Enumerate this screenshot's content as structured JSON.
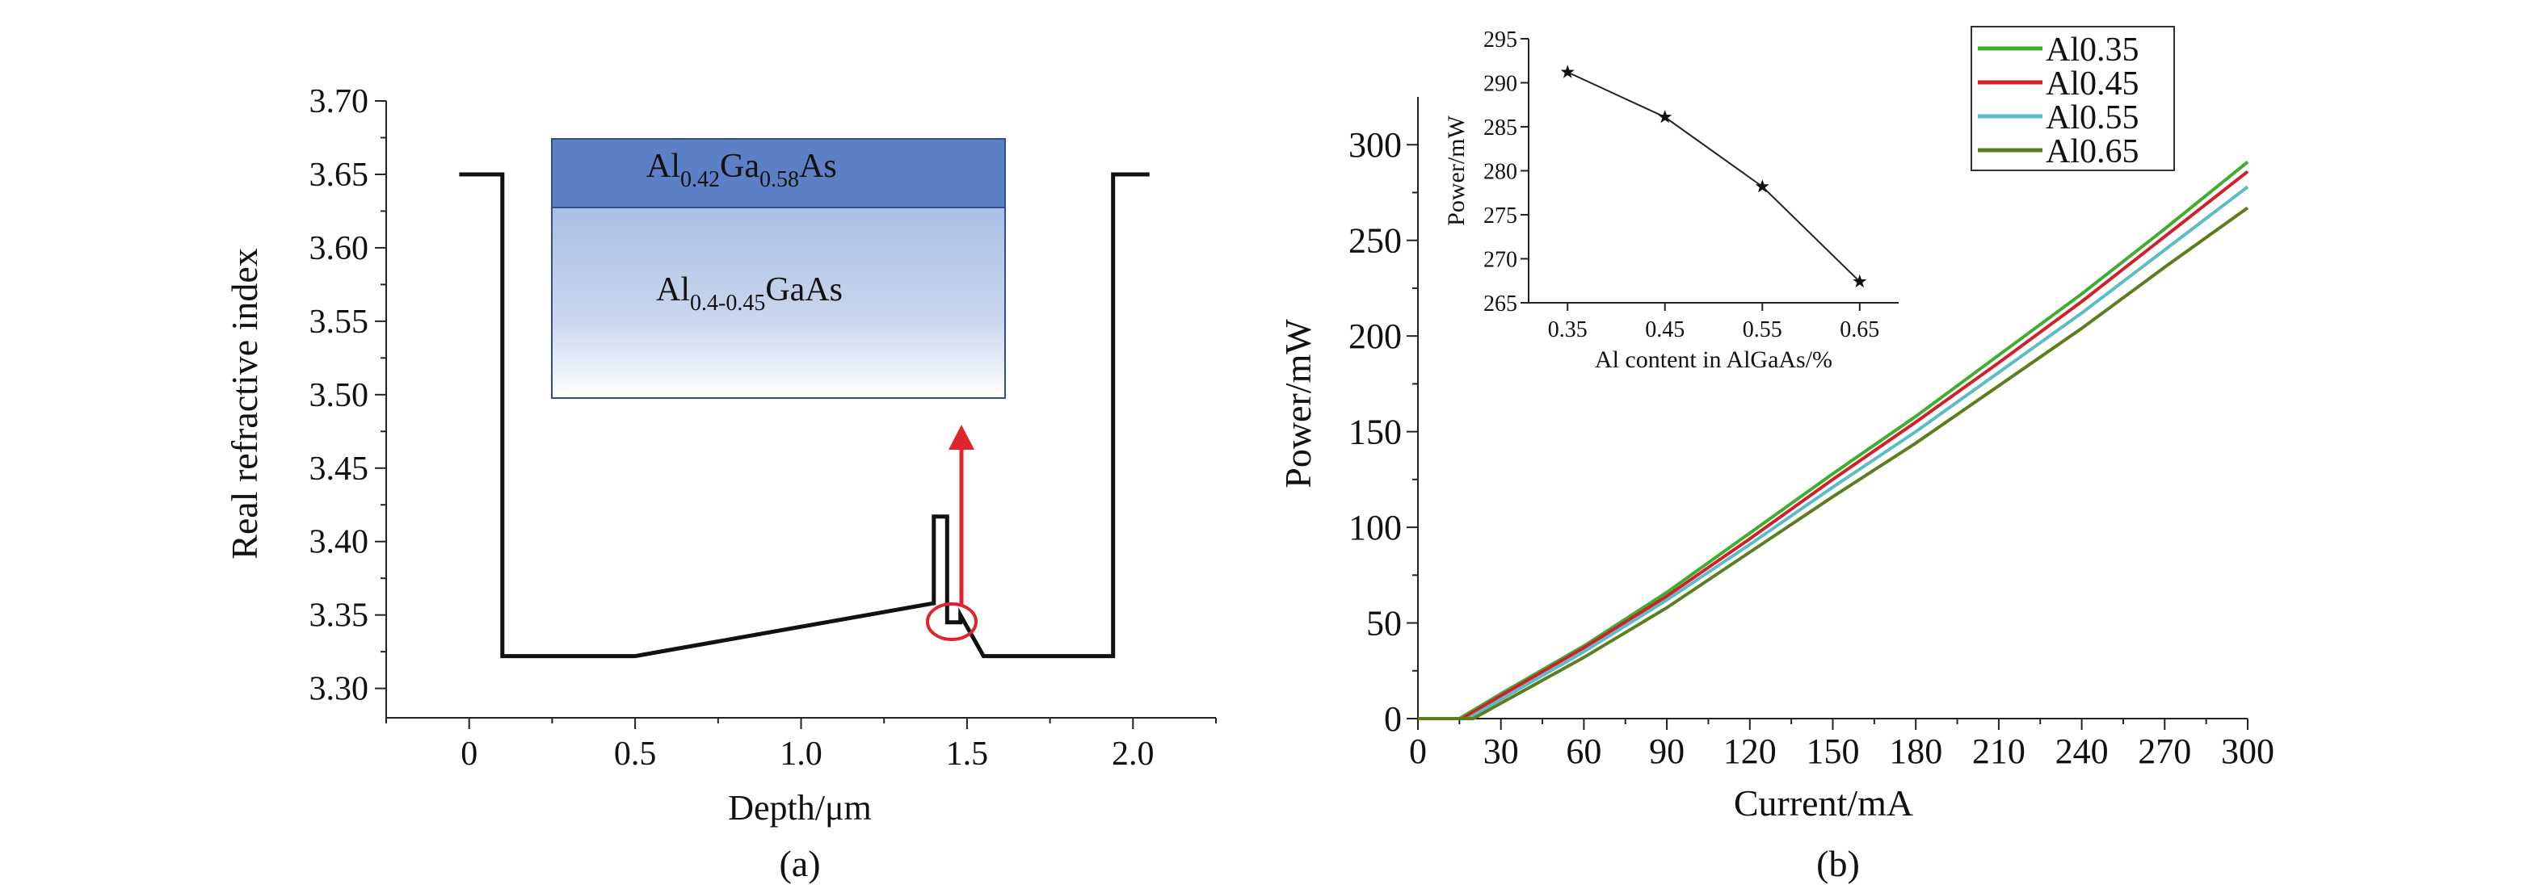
{
  "chart_data": [
    {
      "type": "line",
      "panel_label": "(a)",
      "xlabel": "Depth/μm",
      "ylabel": "Real refractive index",
      "xlim": [
        -0.25,
        2.25
      ],
      "ylim": [
        3.28,
        3.7
      ],
      "xticks": [
        0,
        0.5,
        1.0,
        1.5,
        2.0
      ],
      "xtick_labels": [
        "0",
        "0.5",
        "1.0",
        "1.5",
        "2.0"
      ],
      "yticks": [
        3.3,
        3.35,
        3.4,
        3.45,
        3.5,
        3.55,
        3.6,
        3.65,
        3.7
      ],
      "ytick_labels": [
        "3.30",
        "3.35",
        "3.40",
        "3.45",
        "3.50",
        "3.55",
        "3.60",
        "3.65",
        "3.70"
      ],
      "series": [
        {
          "x": [
            -0.03,
            0.1,
            0.1,
            0.5,
            1.4,
            1.4,
            1.44,
            1.44,
            1.48,
            1.48,
            1.55,
            1.94,
            1.94,
            2.05
          ],
          "y": [
            3.65,
            3.65,
            3.322,
            3.322,
            3.358,
            3.417,
            3.417,
            3.345,
            3.345,
            3.35,
            3.322,
            3.322,
            3.65,
            3.65
          ]
        }
      ],
      "inset_layers": [
        {
          "base": "Al",
          "sub1": "0.42",
          "mid": "Ga",
          "sub2": "0.58",
          "tail": "As"
        },
        {
          "base": "Al",
          "sub1": "0.4-0.45",
          "mid": "GaAs",
          "sub2": "",
          "tail": ""
        }
      ],
      "highlight_color": "#e0242b",
      "layer_top_color": "#5b80c6",
      "layer_gradient_color": "#a9c0e4"
    },
    {
      "type": "line",
      "panel_label": "(b)",
      "xlabel": "Current/mA",
      "ylabel": "Power/mW",
      "xlim": [
        0,
        300
      ],
      "ylim": [
        0,
        325
      ],
      "xticks": [
        0,
        30,
        60,
        90,
        120,
        150,
        180,
        210,
        240,
        270,
        300
      ],
      "xtick_labels": [
        "0",
        "30",
        "60",
        "90",
        "120",
        "150",
        "180",
        "210",
        "240",
        "270",
        "300"
      ],
      "yticks": [
        0,
        50,
        100,
        150,
        200,
        250,
        300
      ],
      "ytick_labels": [
        "0",
        "50",
        "100",
        "150",
        "200",
        "250",
        "300"
      ],
      "legend_position": "top-right",
      "series": [
        {
          "name": "Al0.35",
          "color": "#3fae2e",
          "threshold": 15,
          "x": [
            0,
            15,
            30,
            60,
            90,
            120,
            150,
            180,
            210,
            240,
            270,
            300
          ],
          "y": [
            0,
            0,
            13,
            38,
            66,
            97,
            128,
            158,
            190,
            222,
            256,
            291
          ]
        },
        {
          "name": "Al0.45",
          "color": "#d21f2c",
          "threshold": 16,
          "x": [
            0,
            16,
            30,
            60,
            90,
            120,
            150,
            180,
            210,
            240,
            270,
            300
          ],
          "y": [
            0,
            0,
            12,
            37,
            64,
            94,
            125,
            155,
            186,
            218,
            252,
            286
          ]
        },
        {
          "name": "Al0.55",
          "color": "#5bbcc8",
          "threshold": 18,
          "x": [
            0,
            18,
            30,
            60,
            90,
            120,
            150,
            180,
            210,
            240,
            270,
            300
          ],
          "y": [
            0,
            0,
            10,
            35,
            62,
            91,
            121,
            150,
            181,
            212,
            245,
            278
          ]
        },
        {
          "name": "Al0.65",
          "color": "#5e7d1e",
          "threshold": 20,
          "x": [
            0,
            20,
            30,
            60,
            90,
            120,
            150,
            180,
            210,
            240,
            270,
            300
          ],
          "y": [
            0,
            0,
            8,
            32,
            58,
            87,
            116,
            144,
            174,
            204,
            236,
            267
          ]
        }
      ]
    },
    {
      "type": "line",
      "role": "inset",
      "xlabel": "Al content in AlGaAs/%",
      "ylabel": "Power/mW",
      "xlim": [
        0.31,
        0.69
      ],
      "ylim": [
        265,
        295
      ],
      "xticks": [
        0.35,
        0.45,
        0.55,
        0.65
      ],
      "xtick_labels": [
        "0.35",
        "0.45",
        "0.55",
        "0.65"
      ],
      "yticks": [
        265,
        270,
        275,
        280,
        285,
        290,
        295
      ],
      "ytick_labels": [
        "265",
        "270",
        "275",
        "280",
        "285",
        "290",
        "295"
      ],
      "series": [
        {
          "x": [
            0.35,
            0.45,
            0.55,
            0.65
          ],
          "y": [
            291.2,
            286.1,
            278.2,
            267.4
          ],
          "marker": "star"
        }
      ]
    }
  ]
}
